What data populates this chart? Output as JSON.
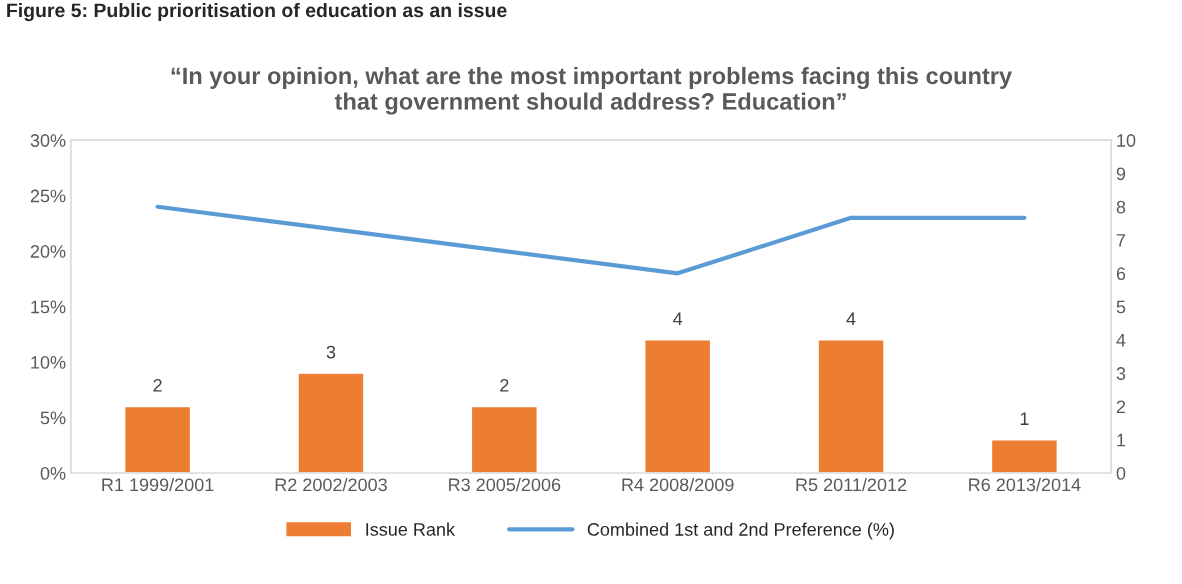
{
  "chart_data": {
    "type": "bar",
    "title": "“In your opinion, what are the most important problems facing this country\nthat government should address? Education”",
    "annotations": [
      "Figure 5: Public prioritisation of education as an issue"
    ],
    "categories": [
      "R1 1999/2001",
      "R2 2002/2003",
      "R3 2005/2006",
      "R4 2008/2009",
      "R5 2011/2012",
      "R6 2013/2014"
    ],
    "series": [
      {
        "name": "Issue Rank",
        "axis": "y2",
        "color": "#ed7d31",
        "values": [
          2,
          3,
          2,
          4,
          4,
          1
        ],
        "data_labels": true
      },
      {
        "name": "Combined 1st and 2nd Preference (%)",
        "type": "line",
        "color": "#5b9bd5",
        "values": [
          24,
          22,
          20,
          18,
          23,
          23
        ]
      }
    ],
    "ylim": [
      0,
      30
    ],
    "yticks": [
      {
        "value": 0,
        "label": "0%"
      },
      {
        "value": 5,
        "label": "5%"
      },
      {
        "value": 10,
        "label": "10%"
      },
      {
        "value": 15,
        "label": "15%"
      },
      {
        "value": 20,
        "label": "20%"
      },
      {
        "value": 25,
        "label": "25%"
      },
      {
        "value": 30,
        "label": "30%"
      }
    ],
    "y2lim": [
      0,
      10
    ],
    "y2ticks": [
      0,
      1,
      2,
      3,
      4,
      5,
      6,
      7,
      8,
      9,
      10
    ],
    "grid": false,
    "legend": "bottom"
  }
}
